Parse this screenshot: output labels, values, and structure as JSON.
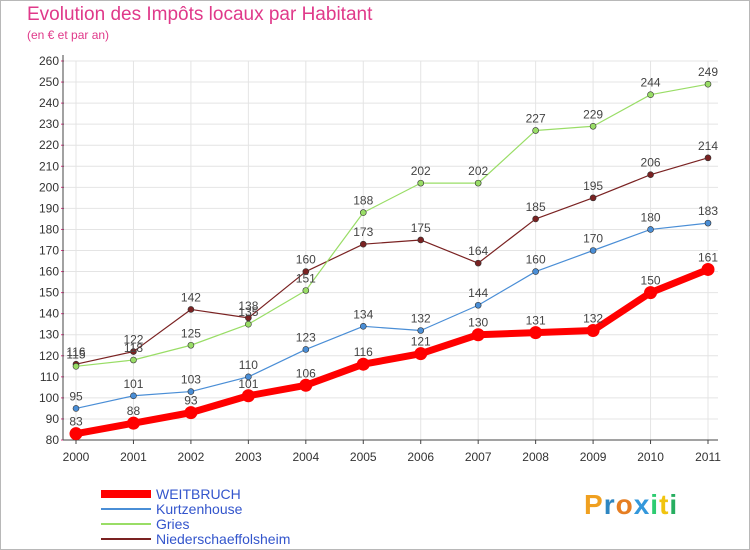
{
  "header": {
    "title": "Evolution des Impôts locaux par Habitant",
    "subtitle": "(en € et par an)"
  },
  "logo": {
    "text": "Proxiti",
    "letters": [
      "P",
      "r",
      "o",
      "x",
      "i",
      "t",
      "i"
    ],
    "colors": [
      "#f0a020",
      "#2e86c1",
      "#e67e22",
      "#3498db",
      "#2ecc71",
      "#f1c40f",
      "#27ae60"
    ]
  },
  "chart_data": {
    "type": "line",
    "title": "Evolution des Impôts locaux par Habitant",
    "subtitle": "(en € et par an)",
    "xlabel": "",
    "ylabel": "",
    "x": [
      "2000",
      "2001",
      "2002",
      "2003",
      "2004",
      "2005",
      "2006",
      "2007",
      "2008",
      "2009",
      "2010",
      "2011"
    ],
    "ylim": [
      80,
      260
    ],
    "ytick_step": 10,
    "grid": true,
    "legend_position": "bottom-left",
    "series": [
      {
        "name": "WEITBRUCH",
        "color": "#ff0000",
        "values": [
          83,
          88,
          93,
          101,
          106,
          116,
          121,
          130,
          131,
          132,
          150,
          161
        ]
      },
      {
        "name": "Kurtzenhouse",
        "color": "#4a8ed6",
        "values": [
          95,
          101,
          103,
          110,
          123,
          134,
          132,
          144,
          160,
          170,
          180,
          183
        ]
      },
      {
        "name": "Gries",
        "color": "#99dd66",
        "values": [
          115,
          118,
          125,
          135,
          151,
          188,
          202,
          202,
          227,
          229,
          244,
          249
        ]
      },
      {
        "name": "Niederschaeffolsheim",
        "color": "#7a2222",
        "values": [
          116,
          122,
          142,
          138,
          160,
          173,
          175,
          164,
          185,
          195,
          206,
          214
        ]
      }
    ]
  }
}
